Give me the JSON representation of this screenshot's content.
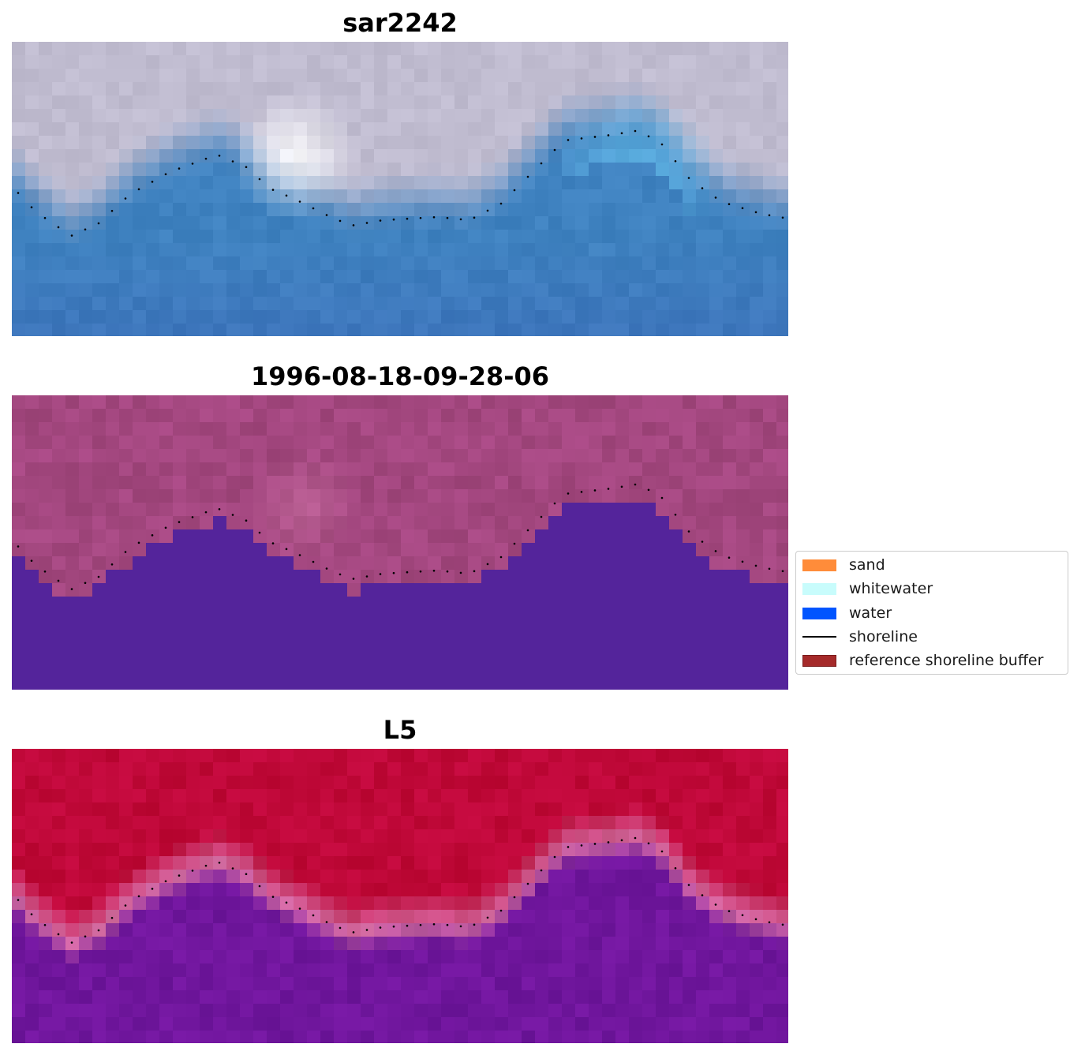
{
  "panels": [
    {
      "title": "sar2242",
      "style": "rgb"
    },
    {
      "title": "1996-08-18-09-28-06",
      "style": "classes"
    },
    {
      "title": "L5",
      "style": "index"
    }
  ],
  "legend": {
    "items": [
      {
        "label": "sand",
        "color": "#ff8c3a",
        "kind": "patch"
      },
      {
        "label": "whitewater",
        "color": "#c8fcfc",
        "kind": "patch"
      },
      {
        "label": "water",
        "color": "#0055ff",
        "kind": "patch"
      },
      {
        "label": "shoreline",
        "color": "#000000",
        "kind": "line"
      },
      {
        "label": "reference shoreline buffer",
        "color": "#a52a2a",
        "kind": "patch"
      }
    ]
  },
  "colors": {
    "rgb_water": "#3f82c0",
    "rgb_land": "#c0bcd0",
    "rgb_bright": "#ffffff",
    "rgb_cyan": "#6ecbf5",
    "class_land": "#a3477f",
    "class_water": "#54249b",
    "index_land": "#bf0838",
    "index_water": "#70169d",
    "index_edge": "#d46ba2"
  }
}
